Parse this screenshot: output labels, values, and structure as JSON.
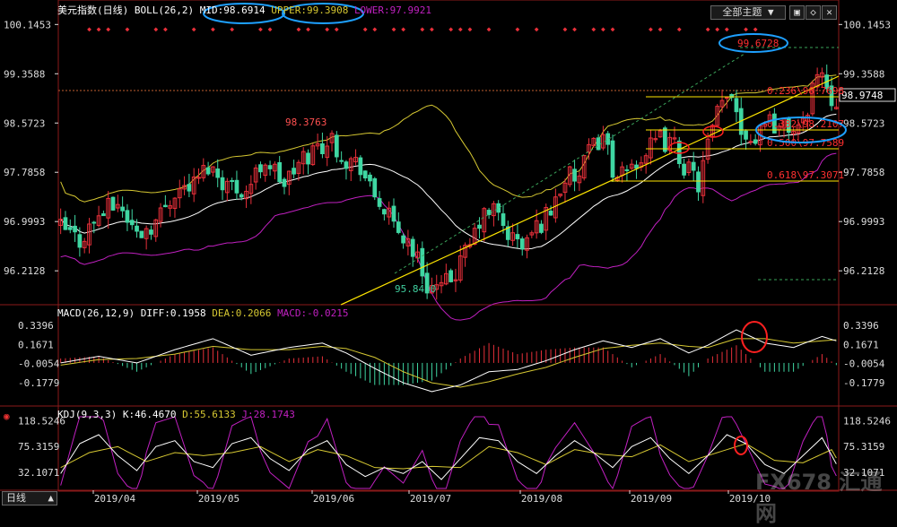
{
  "header": {
    "title": "美元指数(日线)",
    "boll_label": "BOLL(26,2)",
    "mid": "MID:98.6914",
    "upper": "UPPER:99.3908",
    "lower": "LOWER:97.9921",
    "topic_select": "全部主题",
    "period": "日线"
  },
  "macd_header": {
    "params": "MACD(26,12,9)",
    "diff": "DIFF:0.1958",
    "dea": "DEA:0.2066",
    "macd": "MACD:-0.0215"
  },
  "kdj_header": {
    "params": "KDJ(9,3,3)",
    "k": "K:46.4670",
    "d": "D:55.6133",
    "j": "J:28.1743"
  },
  "watermark": "FX678 汇通网",
  "colors": {
    "up": "#e8303a",
    "down": "#3fd6a2",
    "ma": "#ffffff",
    "upper": "#d6c832",
    "lower": "#c020c0",
    "fib": "#ffe600",
    "annot": "#1ea0ff"
  },
  "chart_data": [
    {
      "type": "candlestick",
      "title": "美元指数(日线)",
      "y_ticks": [
        "100.1453",
        "99.3588",
        "98.5723",
        "97.7858",
        "96.9993",
        "96.2128"
      ],
      "ylim": [
        95.7,
        100.25
      ],
      "x_labels": [
        "2019/04",
        "2019/05",
        "2019/06",
        "2019/07",
        "2019/08",
        "2019/09",
        "2019/10"
      ],
      "price_points": [
        [
          0,
          96.9
        ],
        [
          4,
          96.7
        ],
        [
          8,
          97.1
        ],
        [
          12,
          97.3
        ],
        [
          16,
          96.8
        ],
        [
          20,
          97.0
        ],
        [
          24,
          97.5
        ],
        [
          28,
          97.6
        ],
        [
          31,
          97.9
        ],
        [
          35,
          97.6
        ],
        [
          39,
          97.5
        ],
        [
          43,
          98.0
        ],
        [
          47,
          97.6
        ],
        [
          51,
          98.0
        ],
        [
          54,
          98.2
        ],
        [
          57,
          98.3
        ],
        [
          60,
          98.0
        ],
        [
          63,
          97.9
        ],
        [
          65,
          97.5
        ],
        [
          68,
          97.2
        ],
        [
          70,
          96.9
        ],
        [
          73,
          96.7
        ],
        [
          75,
          96.4
        ],
        [
          77,
          96.0
        ],
        [
          80,
          95.9
        ],
        [
          83,
          96.2
        ],
        [
          86,
          96.6
        ],
        [
          88,
          97.0
        ],
        [
          91,
          97.2
        ],
        [
          94,
          96.8
        ],
        [
          97,
          96.6
        ],
        [
          100,
          96.9
        ],
        [
          103,
          97.2
        ],
        [
          106,
          97.7
        ],
        [
          109,
          97.7
        ],
        [
          111,
          98.1
        ],
        [
          114,
          98.4
        ],
        [
          117,
          97.6
        ],
        [
          120,
          97.9
        ],
        [
          123,
          98.1
        ],
        [
          126,
          98.3
        ],
        [
          129,
          98.2
        ],
        [
          131,
          97.9
        ],
        [
          134,
          97.6
        ],
        [
          136,
          98.2
        ],
        [
          138,
          98.7
        ],
        [
          141,
          99.1
        ],
        [
          143,
          98.5
        ],
        [
          146,
          98.3
        ],
        [
          148,
          98.7
        ],
        [
          151,
          98.5
        ],
        [
          153,
          98.5
        ],
        [
          156,
          98.5
        ],
        [
          158,
          99.2
        ],
        [
          160,
          99.4
        ],
        [
          162,
          99.0
        ],
        [
          163,
          98.97
        ]
      ],
      "high_label": "98.3763",
      "low_label": "95.8430",
      "peak_label": "99.6728",
      "fib_levels": [
        {
          "ratio": "0.236",
          "value": 98.7698,
          "label": "0.236\\98.7698"
        },
        {
          "ratio": "0.382",
          "value": 98.2107,
          "label": "0.382\\98.2107"
        },
        {
          "ratio": "0.500",
          "value": 97.7589,
          "label": "0.500\\97.7589"
        },
        {
          "ratio": "0.618",
          "value": 97.3071,
          "label": "0.618\\97.3071"
        }
      ],
      "last_price": "98.9748",
      "indicator": "BOLL(26,2)"
    },
    {
      "type": "macd",
      "y_ticks": [
        "0.3396",
        "0.1671",
        "-0.0054",
        "-0.1779"
      ],
      "ylim": [
        -0.35,
        0.43
      ],
      "diff_points": [
        [
          0,
          0.0
        ],
        [
          8,
          0.06
        ],
        [
          16,
          0.0
        ],
        [
          24,
          0.12
        ],
        [
          32,
          0.22
        ],
        [
          40,
          0.07
        ],
        [
          48,
          0.14
        ],
        [
          55,
          0.18
        ],
        [
          60,
          0.09
        ],
        [
          66,
          -0.05
        ],
        [
          72,
          -0.18
        ],
        [
          78,
          -0.26
        ],
        [
          84,
          -0.2
        ],
        [
          90,
          -0.08
        ],
        [
          96,
          -0.06
        ],
        [
          102,
          0.02
        ],
        [
          108,
          0.12
        ],
        [
          114,
          0.2
        ],
        [
          120,
          0.14
        ],
        [
          126,
          0.22
        ],
        [
          132,
          0.09
        ],
        [
          136,
          0.16
        ],
        [
          142,
          0.3
        ],
        [
          148,
          0.18
        ],
        [
          154,
          0.14
        ],
        [
          160,
          0.24
        ],
        [
          163,
          0.2
        ]
      ],
      "dea_points": [
        [
          0,
          -0.02
        ],
        [
          8,
          0.03
        ],
        [
          16,
          0.04
        ],
        [
          24,
          0.08
        ],
        [
          32,
          0.15
        ],
        [
          40,
          0.12
        ],
        [
          48,
          0.12
        ],
        [
          55,
          0.15
        ],
        [
          60,
          0.13
        ],
        [
          66,
          0.05
        ],
        [
          72,
          -0.08
        ],
        [
          78,
          -0.18
        ],
        [
          84,
          -0.22
        ],
        [
          90,
          -0.17
        ],
        [
          96,
          -0.1
        ],
        [
          102,
          -0.04
        ],
        [
          108,
          0.05
        ],
        [
          114,
          0.13
        ],
        [
          120,
          0.16
        ],
        [
          126,
          0.18
        ],
        [
          132,
          0.15
        ],
        [
          136,
          0.14
        ],
        [
          142,
          0.22
        ],
        [
          148,
          0.22
        ],
        [
          154,
          0.18
        ],
        [
          160,
          0.2
        ],
        [
          163,
          0.21
        ]
      ]
    },
    {
      "type": "kdj",
      "y_ticks": [
        "118.5246",
        "75.3159",
        "32.1071"
      ],
      "ylim": [
        5,
        125
      ],
      "k_points": [
        [
          0,
          30
        ],
        [
          4,
          80
        ],
        [
          8,
          95
        ],
        [
          12,
          60
        ],
        [
          16,
          35
        ],
        [
          20,
          75
        ],
        [
          24,
          85
        ],
        [
          28,
          50
        ],
        [
          32,
          40
        ],
        [
          36,
          80
        ],
        [
          40,
          90
        ],
        [
          44,
          55
        ],
        [
          48,
          35
        ],
        [
          52,
          70
        ],
        [
          56,
          85
        ],
        [
          60,
          45
        ],
        [
          64,
          25
        ],
        [
          68,
          40
        ],
        [
          72,
          30
        ],
        [
          76,
          50
        ],
        [
          80,
          20
        ],
        [
          84,
          55
        ],
        [
          88,
          90
        ],
        [
          92,
          85
        ],
        [
          96,
          50
        ],
        [
          100,
          30
        ],
        [
          104,
          60
        ],
        [
          108,
          85
        ],
        [
          112,
          65
        ],
        [
          116,
          40
        ],
        [
          120,
          75
        ],
        [
          124,
          90
        ],
        [
          128,
          55
        ],
        [
          132,
          30
        ],
        [
          136,
          60
        ],
        [
          140,
          95
        ],
        [
          144,
          80
        ],
        [
          148,
          45
        ],
        [
          152,
          30
        ],
        [
          156,
          60
        ],
        [
          160,
          90
        ],
        [
          163,
          46
        ]
      ],
      "d_points": [
        [
          0,
          40
        ],
        [
          6,
          65
        ],
        [
          12,
          75
        ],
        [
          18,
          50
        ],
        [
          24,
          65
        ],
        [
          30,
          60
        ],
        [
          36,
          65
        ],
        [
          42,
          75
        ],
        [
          48,
          50
        ],
        [
          54,
          70
        ],
        [
          60,
          60
        ],
        [
          66,
          40
        ],
        [
          72,
          38
        ],
        [
          78,
          42
        ],
        [
          84,
          40
        ],
        [
          90,
          75
        ],
        [
          96,
          65
        ],
        [
          102,
          45
        ],
        [
          108,
          70
        ],
        [
          114,
          62
        ],
        [
          120,
          58
        ],
        [
          126,
          78
        ],
        [
          132,
          50
        ],
        [
          138,
          65
        ],
        [
          144,
          80
        ],
        [
          150,
          52
        ],
        [
          156,
          48
        ],
        [
          162,
          70
        ],
        [
          163,
          56
        ]
      ]
    }
  ]
}
